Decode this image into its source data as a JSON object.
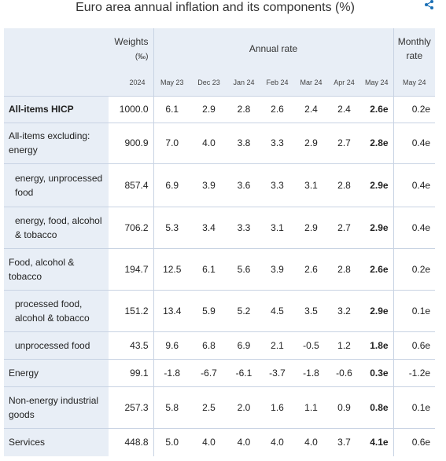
{
  "title": "Euro area annual inflation and its components (%)",
  "header": {
    "weights_line1": "Weights",
    "weights_line2": "(‰)",
    "annual_rate": "Annual rate",
    "monthly_line1": "Monthly",
    "monthly_line2": "rate",
    "weights_year": "2024",
    "annual_columns": [
      "May 23",
      "Dec 23",
      "Jan 24",
      "Feb 24",
      "Mar 24",
      "Apr 24",
      "May 24"
    ],
    "monthly_column": "May 24"
  },
  "rows": [
    {
      "label": "All-items HICP",
      "weight": "1000.0",
      "annual": [
        "6.1",
        "2.9",
        "2.8",
        "2.6",
        "2.4",
        "2.4",
        "2.6e"
      ],
      "monthly": "0.2e"
    },
    {
      "label": "All-items excluding:\n   energy",
      "weight": "900.9",
      "annual": [
        "7.0",
        "4.0",
        "3.8",
        "3.3",
        "2.9",
        "2.7",
        "2.8e"
      ],
      "monthly": "0.4e"
    },
    {
      "label": "energy, unprocessed food",
      "weight": "857.4",
      "annual": [
        "6.9",
        "3.9",
        "3.6",
        "3.3",
        "3.1",
        "2.8",
        "2.9e"
      ],
      "monthly": "0.4e"
    },
    {
      "label": "energy, food, alcohol & tobacco",
      "weight": "706.2",
      "annual": [
        "5.3",
        "3.4",
        "3.3",
        "3.1",
        "2.9",
        "2.7",
        "2.9e"
      ],
      "monthly": "0.4e"
    },
    {
      "label": "Food, alcohol & tobacco",
      "weight": "194.7",
      "annual": [
        "12.5",
        "6.1",
        "5.6",
        "3.9",
        "2.6",
        "2.8",
        "2.6e"
      ],
      "monthly": "0.2e"
    },
    {
      "label": "processed food, alcohol & tobacco",
      "weight": "151.2",
      "annual": [
        "13.4",
        "5.9",
        "5.2",
        "4.5",
        "3.5",
        "3.2",
        "2.9e"
      ],
      "monthly": "0.1e"
    },
    {
      "label": "unprocessed food",
      "weight": "43.5",
      "annual": [
        "9.6",
        "6.8",
        "6.9",
        "2.1",
        "-0.5",
        "1.2",
        "1.8e"
      ],
      "monthly": "0.6e"
    },
    {
      "label": "Energy",
      "weight": "99.1",
      "annual": [
        "-1.8",
        "-6.7",
        "-6.1",
        "-3.7",
        "-1.8",
        "-0.6",
        "0.3e"
      ],
      "monthly": "-1.2e"
    },
    {
      "label": "Non-energy industrial goods",
      "weight": "257.3",
      "annual": [
        "5.8",
        "2.5",
        "2.0",
        "1.6",
        "1.1",
        "0.9",
        "0.8e"
      ],
      "monthly": "0.1e"
    },
    {
      "label": "Services",
      "weight": "448.8",
      "annual": [
        "5.0",
        "4.0",
        "4.0",
        "4.0",
        "4.0",
        "3.7",
        "4.1e"
      ],
      "monthly": "0.6e"
    }
  ]
}
